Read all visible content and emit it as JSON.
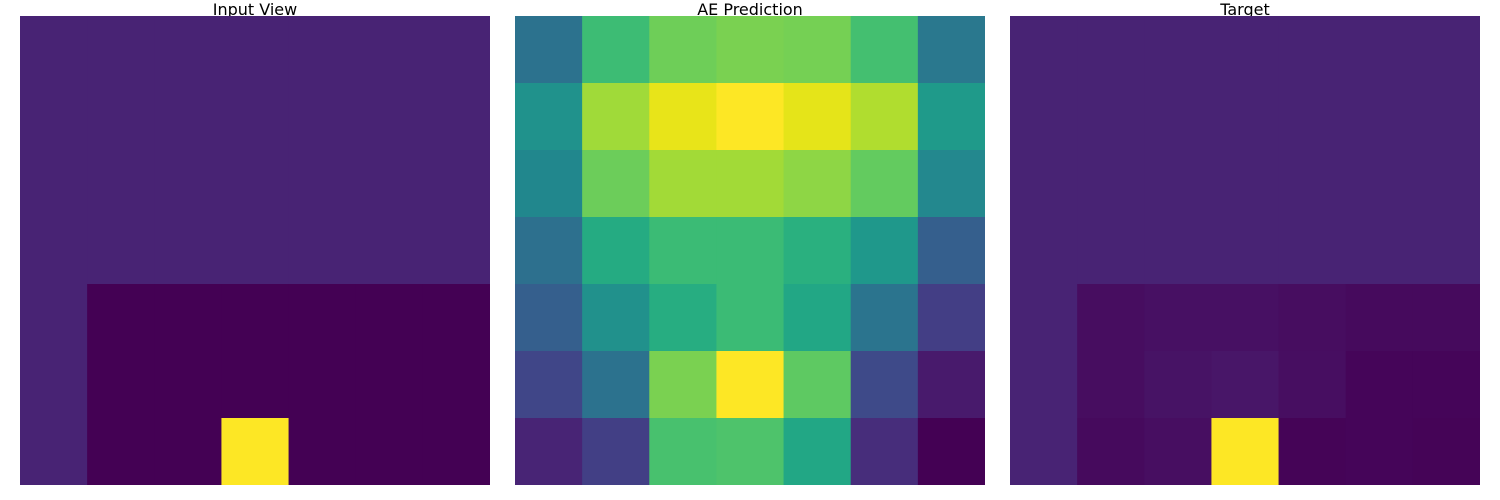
{
  "chart_data": [
    {
      "type": "heatmap",
      "title": "Input View",
      "rows": 7,
      "cols": 7,
      "values": [
        [
          "#482374",
          "#482374",
          "#482374",
          "#482374",
          "#482374",
          "#482374",
          "#482374"
        ],
        [
          "#482374",
          "#482374",
          "#482374",
          "#482374",
          "#482374",
          "#482374",
          "#482374"
        ],
        [
          "#482374",
          "#482374",
          "#482374",
          "#482374",
          "#482374",
          "#482374",
          "#482374"
        ],
        [
          "#482374",
          "#482374",
          "#482374",
          "#482374",
          "#482374",
          "#482374",
          "#482374"
        ],
        [
          "#482374",
          "#440154",
          "#440154",
          "#440154",
          "#440154",
          "#440154",
          "#440154"
        ],
        [
          "#482374",
          "#440154",
          "#440154",
          "#440154",
          "#440154",
          "#440154",
          "#440154"
        ],
        [
          "#482374",
          "#440154",
          "#440154",
          "#fde725",
          "#440154",
          "#440154",
          "#440154"
        ]
      ]
    },
    {
      "type": "heatmap",
      "title": "AE Prediction",
      "rows": 7,
      "cols": 7,
      "values": [
        [
          "#2c728e",
          "#3dbc74",
          "#6ece58",
          "#7ad151",
          "#75d054",
          "#44bf70",
          "#2a788e"
        ],
        [
          "#20928c",
          "#a0da39",
          "#e8e419",
          "#fde725",
          "#e5e419",
          "#b0dd2f",
          "#1f9a8a"
        ],
        [
          "#21878d",
          "#6ccd5a",
          "#a2da37",
          "#a2da37",
          "#8ed645",
          "#63cb5f",
          "#23888e"
        ],
        [
          "#2d708e",
          "#25ab82",
          "#3bbb75",
          "#3bbb75",
          "#2ab07f",
          "#1f988b",
          "#355f8d"
        ],
        [
          "#355f8d",
          "#21918c",
          "#27ad81",
          "#3bbb75",
          "#22a785",
          "#2b748e",
          "#433e85"
        ],
        [
          "#404688",
          "#2c728e",
          "#7ad151",
          "#fde725",
          "#5ec962",
          "#3e4a89",
          "#481a6c"
        ],
        [
          "#482475",
          "#423f85",
          "#48c16e",
          "#4ec36b",
          "#22a785",
          "#472d7b",
          "#440154"
        ]
      ]
    },
    {
      "type": "heatmap",
      "title": "Target",
      "rows": 7,
      "cols": 7,
      "values": [
        [
          "#482374",
          "#482374",
          "#482374",
          "#482374",
          "#482374",
          "#482374",
          "#482374"
        ],
        [
          "#482374",
          "#482374",
          "#482374",
          "#482374",
          "#482374",
          "#482374",
          "#482374"
        ],
        [
          "#482374",
          "#482374",
          "#482374",
          "#482374",
          "#482374",
          "#482374",
          "#482374"
        ],
        [
          "#482374",
          "#482374",
          "#482374",
          "#482374",
          "#482374",
          "#482374",
          "#482374"
        ],
        [
          "#482374",
          "#470d60",
          "#471063",
          "#471063",
          "#470d60",
          "#460a5d",
          "#460a5d"
        ],
        [
          "#482374",
          "#470d60",
          "#471365",
          "#481668",
          "#470e61",
          "#450559",
          "#450559"
        ],
        [
          "#482374",
          "#460a5d",
          "#470e61",
          "#fde725",
          "#450457",
          "#450559",
          "#450457"
        ]
      ]
    }
  ]
}
